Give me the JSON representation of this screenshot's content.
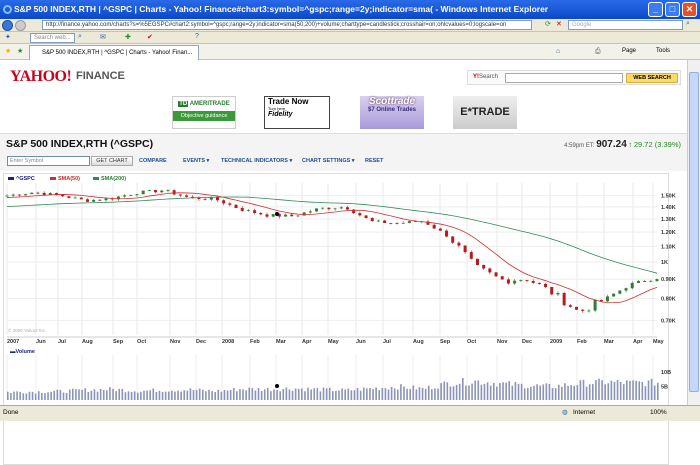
{
  "window": {
    "title": "S&P 500 INDEX,RTH | ^GSPC | Charts - Yahoo! Finance#chart3:symbol=^gspc;range=2y;indicator=sma( - Windows Internet Explorer"
  },
  "browser": {
    "url": "http://finance.yahoo.com/charts?s=%5EGSPC#chart2:symbol=^gspc;range=2y;indicator=sma(50,200)+volume;charttype=candlestick;crosshair=on;ohlcvalues=0;logscale=on",
    "search_placeholder": "Google",
    "toolbar_search_placeholder": "Search web...",
    "tab_label": "S&P 500 INDEX,RTH | ^GSPC | Charts - Yahoo! Finan...",
    "page_menu": "Page",
    "tools_menu": "Tools",
    "status": "Done",
    "zone": "Internet",
    "zoom": "100%"
  },
  "yahoo": {
    "logo": "YAHOO!",
    "section": "FINANCE",
    "search_label": "Search",
    "search_button": "WEB SEARCH",
    "ads": [
      {
        "line1": "AMERITRADE",
        "line2": "Objective guidance",
        "brand": "TD"
      },
      {
        "line1": "Trade Now",
        "line2": "Fidelity",
        "small": "Turn here"
      },
      {
        "line1": "Scottrade",
        "line2": "$7 Online Trades"
      },
      {
        "line1": "E*TRADE"
      }
    ]
  },
  "quote": {
    "title": "S&P 500 INDEX,RTH (^GSPC)",
    "time": "4:59pm ET:",
    "price": "907.24",
    "change": "29.72 (3.39%)",
    "direction": "up"
  },
  "controls": {
    "symbol_placeholder": "Enter Symbol",
    "get_chart": "GET CHART",
    "compare": "COMPARE",
    "events": "EVENTS",
    "technical": "TECHNICAL INDICATORS",
    "settings": "CHART SETTINGS",
    "reset": "RESET"
  },
  "chart_data": {
    "type": "candlestick",
    "legend": [
      "^GSPC",
      "SMA(50)",
      "SMA(200)"
    ],
    "colors": {
      "price": "#1a237e",
      "up": "#2e7d32",
      "down": "#b71c1c",
      "sma50": "#d32f2f",
      "sma200": "#2e8b57",
      "volume": "#8a93b8"
    },
    "log_scale": true,
    "y_ticks": [
      {
        "v": 1500,
        "l": "1.50K"
      },
      {
        "v": 1400,
        "l": "1.40K"
      },
      {
        "v": 1300,
        "l": "1.30K"
      },
      {
        "v": 1200,
        "l": "1.20K"
      },
      {
        "v": 1100,
        "l": "1.10K"
      },
      {
        "v": 1000,
        "l": "1K"
      },
      {
        "v": 900,
        "l": "0.90K"
      },
      {
        "v": 800,
        "l": "0.80K"
      },
      {
        "v": 700,
        "l": "0.70K"
      }
    ],
    "ylim": [
      640,
      1620
    ],
    "x_labels": [
      "2007",
      "Jun",
      "Jul",
      "Aug",
      "Sep",
      "Oct",
      "Nov",
      "Dec",
      "2008",
      "Feb",
      "Mar",
      "Apr",
      "May",
      "Jun",
      "Jul",
      "Aug",
      "Sep",
      "Oct",
      "Nov",
      "Dec",
      "2009",
      "Feb",
      "Mar",
      "Apr",
      "May"
    ],
    "monthly_close": [
      1500,
      1530,
      1503,
      1455,
      1474,
      1527,
      1549,
      1481,
      1468,
      1378,
      1330,
      1323,
      1386,
      1400,
      1280,
      1267,
      1283,
      1166,
      968,
      896,
      903,
      826,
      735,
      797,
      873,
      907
    ],
    "copyright": "© 2009 Yahoo! Inc.",
    "volume": {
      "label": "Volume",
      "y_ticks": [
        {
          "v": 10,
          "l": "10B"
        },
        {
          "v": 5,
          "l": "5B"
        }
      ],
      "monthly_avg_billions": [
        2.9,
        3.0,
        3.1,
        3.6,
        3.9,
        3.3,
        3.6,
        3.7,
        3.2,
        4.0,
        3.9,
        4.2,
        3.8,
        3.5,
        4.2,
        4.8,
        4.1,
        6.2,
        6.8,
        5.9,
        5.2,
        4.9,
        6.0,
        6.5,
        6.2,
        6.3
      ]
    }
  }
}
